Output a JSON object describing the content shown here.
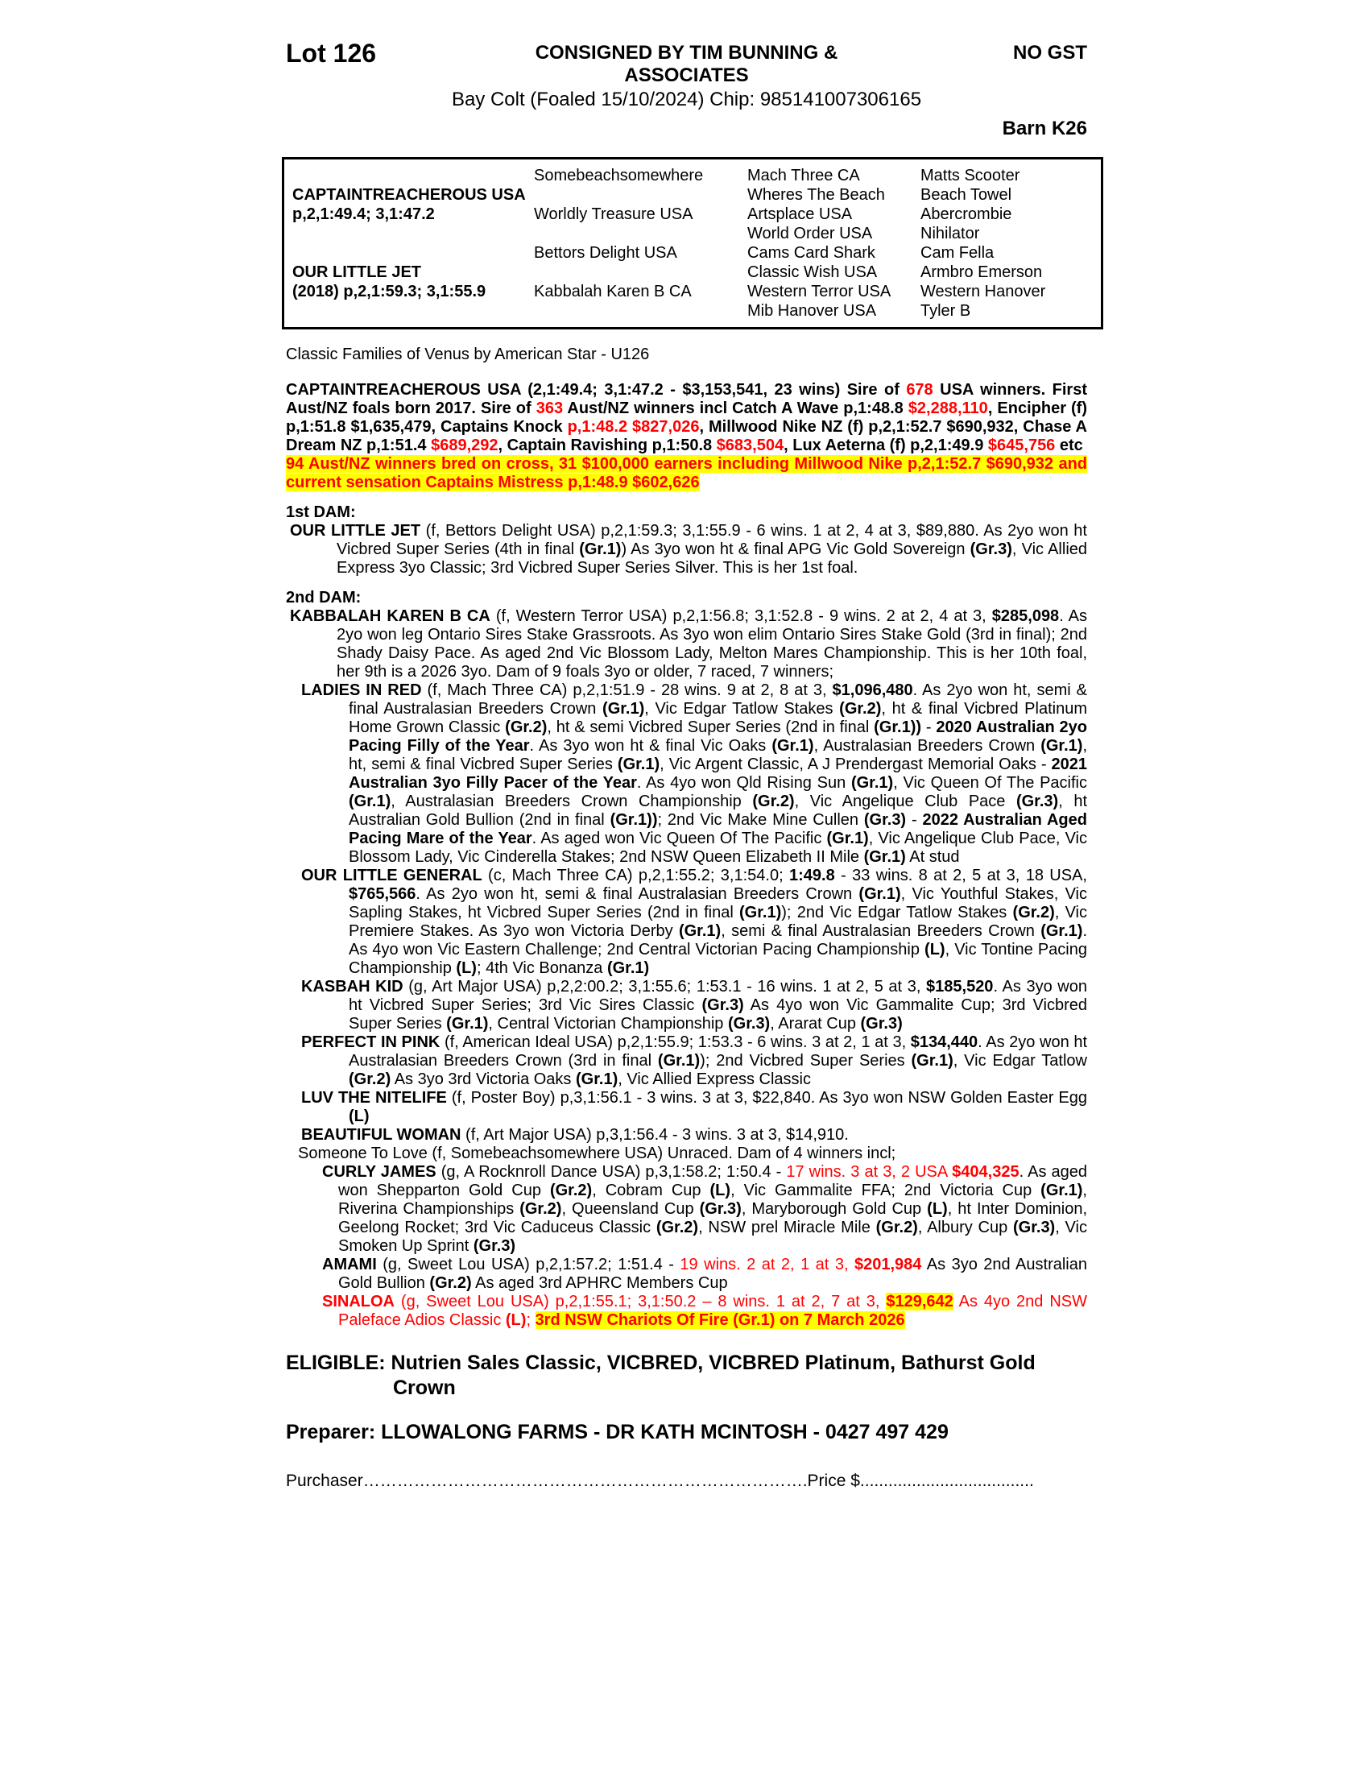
{
  "header": {
    "lot": "Lot 126",
    "consigned": "CONSIGNED BY TIM BUNNING & ASSOCIATES",
    "no_gst": "NO GST",
    "colt_line": "Bay Colt (Foaled 15/10/2024) Chip: 985141007306165",
    "barn": "Barn K26"
  },
  "pedigree": {
    "rows": [
      [
        "",
        "Somebeachsomewhere",
        "Mach Three CA",
        "Matts Scooter"
      ],
      [
        "CAPTAINTREACHEROUS USA",
        "",
        "Wheres The Beach",
        "Beach Towel"
      ],
      [
        "p,2,1:49.4; 3,1:47.2",
        "Worldly Treasure USA",
        "Artsplace USA",
        "Abercrombie"
      ],
      [
        "",
        "",
        "World Order USA",
        "Nihilator"
      ],
      [
        "",
        "Bettors Delight USA",
        "Cams Card Shark",
        "Cam Fella"
      ],
      [
        "OUR LITTLE JET",
        "",
        "Classic Wish USA",
        "Armbro Emerson"
      ],
      [
        "(2018) p,2,1:59.3; 3,1:55.9",
        "Kabbalah Karen B CA",
        "Western Terror USA",
        "Western Hanover"
      ],
      [
        "",
        "",
        "Mib Hanover USA",
        "Tyler B"
      ]
    ]
  },
  "body": {
    "family_line": "Classic Families of Venus by American Star - U126",
    "sire": {
      "seg": [
        [
          "",
          "CAPTAINTREACHEROUS USA (2,1:49.4; 3,1:47.2 - $3,153,541, 23 wins) Sire of "
        ],
        [
          "rb",
          "678"
        ],
        [
          "",
          " USA winners. First Aust/NZ foals born 2017. Sire of "
        ],
        [
          "rb",
          "363"
        ],
        [
          "",
          " Aust/NZ winners incl Catch A Wave p,1:48.8 "
        ],
        [
          "rb",
          "$2,288,110"
        ],
        [
          "",
          ", Encipher (f) p,1:51.8  $1,635,479, Captains Knock "
        ],
        [
          "rb",
          "p,1:48.2 $827,026"
        ],
        [
          "",
          ", Millwood Nike NZ (f) p,2,1:52.7 $690,932, Chase A Dream NZ p,1:51.4 "
        ],
        [
          "rb",
          "$689,292"
        ],
        [
          "",
          ", Captain Ravishing p,1:50.8 "
        ],
        [
          "rb",
          "$683,504"
        ],
        [
          "",
          ", Lux Aeterna (f) p,2,1:49.9 "
        ],
        [
          "rb",
          "$645,756"
        ],
        [
          "",
          " etc"
        ]
      ]
    },
    "cross": {
      "seg": [
        [
          "hl",
          "94 Aust/NZ winners  bred on cross, 31 $100,000 earners including Millwood Nike p,2,1:52.7 $690,932 and current sensation Captains Mistress p,1:48.9 $602,626"
        ]
      ]
    },
    "dam1_heading": "1st DAM:",
    "our_little_jet": {
      "seg": [
        [
          "b",
          "OUR LITTLE JET"
        ],
        [
          "",
          " (f, Bettors Delight USA) p,2,1:59.3; 3,1:55.9 - 6 wins. 1 at 2, 4 at 3, $89,880. As 2yo won ht Vicbred Super Series (4th in final "
        ],
        [
          "b",
          "(Gr.1)"
        ],
        [
          "",
          ") As 3yo won ht & final APG Vic Gold Sovereign "
        ],
        [
          "b",
          "(Gr.3)"
        ],
        [
          "",
          ", Vic Allied Express 3yo Classic; 3rd Vicbred Super Series Silver. This is her 1st foal."
        ]
      ]
    },
    "dam2_heading": "2nd DAM:",
    "kabbalah_karen": {
      "seg": [
        [
          "b",
          "KABBALAH KAREN B CA"
        ],
        [
          "",
          " (f, Western Terror USA) p,2,1:56.8; 3,1:52.8 - 9 wins. 2 at 2, 4 at 3, "
        ],
        [
          "b",
          "$285,098"
        ],
        [
          "",
          ". As 2yo won leg Ontario Sires Stake Grassroots. As 3yo won elim Ontario Sires Stake Gold (3rd in final); 2nd Shady Daisy Pace. As aged 2nd Vic Blossom Lady, Melton Mares Championship. This is her 10th foal, her 9th is a 2026 3yo. Dam of 9 foals 3yo or older, 7 raced, 7 winners;"
        ]
      ]
    },
    "ladies_in_red": {
      "seg": [
        [
          "b",
          "LADIES IN RED"
        ],
        [
          "",
          " (f, Mach Three CA) p,2,1:51.9 - 28 wins. 9 at 2, 8 at 3, "
        ],
        [
          "b",
          "$1,096,480"
        ],
        [
          "",
          ". As 2yo won ht, semi & final Australasian Breeders Crown "
        ],
        [
          "b",
          "(Gr.1)"
        ],
        [
          "",
          ", Vic Edgar Tatlow Stakes "
        ],
        [
          "b",
          "(Gr.2)"
        ],
        [
          "",
          ", ht & final Vicbred Platinum Home Grown Classic "
        ],
        [
          "b",
          "(Gr.2)"
        ],
        [
          "",
          ", ht & semi Vicbred Super Series (2nd in final "
        ],
        [
          "b",
          "(Gr.1))"
        ],
        [
          "",
          " - "
        ],
        [
          "b",
          "2020 Australian 2yo Pacing Filly of the Year"
        ],
        [
          "",
          ". As 3yo won ht & final Vic Oaks "
        ],
        [
          "b",
          "(Gr.1)"
        ],
        [
          "",
          ", Australasian Breeders Crown "
        ],
        [
          "b",
          "(Gr.1)"
        ],
        [
          "",
          ", ht, semi & final Vicbred Super Series "
        ],
        [
          "b",
          "(Gr.1)"
        ],
        [
          "",
          ", Vic Argent Classic, A J Prendergast Memorial Oaks - "
        ],
        [
          "b",
          "2021 Australian 3yo Filly Pacer of the Year"
        ],
        [
          "",
          ". As 4yo won Qld Rising Sun "
        ],
        [
          "b",
          "(Gr.1)"
        ],
        [
          "",
          ", Vic Queen Of The Pacific "
        ],
        [
          "b",
          "(Gr.1)"
        ],
        [
          "",
          ", Australasian Breeders Crown Championship "
        ],
        [
          "b",
          "(Gr.2)"
        ],
        [
          "",
          ", Vic Angelique Club Pace "
        ],
        [
          "b",
          "(Gr.3)"
        ],
        [
          "",
          ", ht  Australian Gold Bullion (2nd in final "
        ],
        [
          "b",
          "(Gr.1))"
        ],
        [
          "",
          "; 2nd Vic Make Mine Cullen "
        ],
        [
          "b",
          "(Gr.3)"
        ],
        [
          "",
          " - "
        ],
        [
          "b",
          "2022 Australian Aged Pacing Mare of the Year"
        ],
        [
          "",
          ". As aged won Vic Queen Of The Pacific "
        ],
        [
          "b",
          "(Gr.1)"
        ],
        [
          "",
          ", Vic Angelique Club Pace, Vic Blossom Lady, Vic Cinderella Stakes; 2nd NSW Queen Elizabeth II Mile "
        ],
        [
          "b",
          "(Gr.1)"
        ],
        [
          "",
          " At stud"
        ]
      ]
    },
    "our_little_general": {
      "seg": [
        [
          "b",
          "OUR LITTLE GENERAL"
        ],
        [
          "",
          " (c, Mach Three CA) p,2,1:55.2; 3,1:54.0; "
        ],
        [
          "b",
          "1:49.8"
        ],
        [
          "",
          " - 33 wins. 8 at 2, 5 at 3, 18 USA, "
        ],
        [
          "b",
          "$765,566"
        ],
        [
          "",
          ". As 2yo won ht, semi & final Australasian Breeders Crown "
        ],
        [
          "b",
          "(Gr.1)"
        ],
        [
          "",
          ", Vic Youthful Stakes, Vic Sapling Stakes, ht Vicbred Super Series (2nd in final "
        ],
        [
          "b",
          "(Gr.1)"
        ],
        [
          "",
          "); 2nd Vic Edgar Tatlow Stakes "
        ],
        [
          "b",
          "(Gr.2)"
        ],
        [
          "",
          ", Vic Premiere Stakes. As 3yo won Victoria Derby "
        ],
        [
          "b",
          "(Gr.1)"
        ],
        [
          "",
          ", semi & final Australasian Breeders Crown "
        ],
        [
          "b",
          "(Gr.1)"
        ],
        [
          "",
          ". As 4yo won Vic Eastern Challenge; 2nd Central Victorian Pacing Championship "
        ],
        [
          "b",
          "(L)"
        ],
        [
          "",
          ", Vic Tontine Pacing Championship "
        ],
        [
          "b",
          "(L)"
        ],
        [
          "",
          "; 4th Vic Bonanza "
        ],
        [
          "b",
          "(Gr.1)"
        ]
      ]
    },
    "kasbah_kid": {
      "seg": [
        [
          "b",
          "KASBAH KID"
        ],
        [
          "",
          " (g, Art Major USA) p,2,2:00.2; 3,1:55.6; 1:53.1 - 16 wins. 1 at 2, 5 at 3, "
        ],
        [
          "b",
          "$185,520"
        ],
        [
          "",
          ". As 3yo won ht Vicbred Super Series; 3rd Vic Sires Classic "
        ],
        [
          "b",
          "(Gr.3)"
        ],
        [
          "",
          " As 4yo won Vic Gammalite Cup; 3rd Vicbred Super Series "
        ],
        [
          "b",
          "(Gr.1)"
        ],
        [
          "",
          ", Central Victorian Championship "
        ],
        [
          "b",
          "(Gr.3)"
        ],
        [
          "",
          ", Ararat Cup "
        ],
        [
          "b",
          "(Gr.3)"
        ]
      ]
    },
    "perfect_in_pink": {
      "seg": [
        [
          "b",
          "PERFECT IN PINK"
        ],
        [
          "",
          " (f, American Ideal USA) p,2,1:55.9; 1:53.3 - 6 wins. 3 at 2, 1 at 3, "
        ],
        [
          "b",
          "$134,440"
        ],
        [
          "",
          ". As 2yo won ht Australasian Breeders Crown (3rd in final "
        ],
        [
          "b",
          "(Gr.1)"
        ],
        [
          "",
          "); 2nd Vicbred Super Series "
        ],
        [
          "b",
          "(Gr.1)"
        ],
        [
          "",
          ", Vic Edgar Tatlow "
        ],
        [
          "b",
          "(Gr.2)"
        ],
        [
          "",
          " As 3yo 3rd Victoria Oaks "
        ],
        [
          "b",
          "(Gr.1)"
        ],
        [
          "",
          ", Vic Allied Express Classic"
        ]
      ]
    },
    "luv_the_nitelife": {
      "seg": [
        [
          "b",
          "LUV THE NITELIFE"
        ],
        [
          "",
          " (f, Poster Boy) p,3,1:56.1 - 3 wins. 3 at 3, $22,840. As 3yo won NSW Golden Easter Egg "
        ],
        [
          "b",
          "(L)"
        ]
      ]
    },
    "beautiful_woman": {
      "seg": [
        [
          "b",
          "BEAUTIFUL WOMAN"
        ],
        [
          "",
          " (f, Art Major USA) p,3,1:56.4 - 3 wins. 3 at 3, $14,910."
        ]
      ]
    },
    "someone_to_love": {
      "seg": [
        [
          "",
          "Someone To Love (f, Somebeachsomewhere USA) Unraced. Dam of 4 winners incl;"
        ]
      ]
    },
    "curly_james": {
      "seg": [
        [
          "b",
          "CURLY JAMES"
        ],
        [
          "",
          " (g, A Rocknroll Dance USA) p,3,1:58.2; 1:50.4 - "
        ],
        [
          "r",
          "17 wins. 3 at 3, 2 USA "
        ],
        [
          "rb",
          "$404,325"
        ],
        [
          "",
          ". As aged won Shepparton Gold Cup "
        ],
        [
          "b",
          "(Gr.2)"
        ],
        [
          "",
          ", Cobram Cup "
        ],
        [
          "b",
          "(L)"
        ],
        [
          "",
          ", Vic Gammalite FFA; 2nd Victoria Cup "
        ],
        [
          "b",
          "(Gr.1)"
        ],
        [
          "",
          ", Riverina Championships "
        ],
        [
          "b",
          "(Gr.2)"
        ],
        [
          "",
          ", Queensland Cup "
        ],
        [
          "b",
          "(Gr.3)"
        ],
        [
          "",
          ", Maryborough Gold Cup "
        ],
        [
          "b",
          "(L)"
        ],
        [
          "",
          ", ht Inter Dominion, Geelong Rocket; 3rd Vic Caduceus Classic "
        ],
        [
          "b",
          "(Gr.2)"
        ],
        [
          "",
          ", NSW prel Miracle Mile "
        ],
        [
          "b",
          "(Gr.2)"
        ],
        [
          "",
          ", Albury Cup "
        ],
        [
          "b",
          "(Gr.3)"
        ],
        [
          "",
          ", Vic Smoken Up Sprint "
        ],
        [
          "b",
          "(Gr.3)"
        ]
      ]
    },
    "amami": {
      "seg": [
        [
          "b",
          "AMAMI"
        ],
        [
          "",
          " (g, Sweet Lou USA) p,2,1:57.2; 1:51.4 - "
        ],
        [
          "r",
          "19 wins. 2 at 2, 1 at 3, "
        ],
        [
          "rb",
          "$201,984"
        ],
        [
          "",
          " As 3yo 2nd Australian Gold Bullion "
        ],
        [
          "b",
          "(Gr.2)"
        ],
        [
          "",
          " As aged 3rd APHRC Members Cup"
        ]
      ]
    },
    "sinaloa": {
      "seg": [
        [
          "rb",
          "SINALOA"
        ],
        [
          "r",
          " (g, Sweet Lou USA) p,2,1:55.1; 3,1:50.2 – 8 wins. 1 at 2, 7 at 3, "
        ],
        [
          "rbhl",
          "$129,642"
        ],
        [
          "r",
          " As 4yo 2nd NSW Paleface Adios Classic "
        ],
        [
          "rb",
          "(L)"
        ],
        [
          "r",
          "; "
        ],
        [
          "rbhl",
          "3rd NSW Chariots Of Fire (Gr.1) on 7 March 2026"
        ]
      ]
    }
  },
  "footer": {
    "eligible": "ELIGIBLE: Nutrien Sales Classic, VICBRED, VICBRED Platinum,  Bathurst Gold Crown",
    "preparer": "Preparer: LLOWALONG FARMS - DR KATH MCINTOSH - 0427 497 429",
    "purchaser_line": "Purchaser…………………………………………………………………….Price $....................................."
  },
  "colors": {
    "accent_red": "#ff0000",
    "highlight_yellow": "#ffff00"
  }
}
